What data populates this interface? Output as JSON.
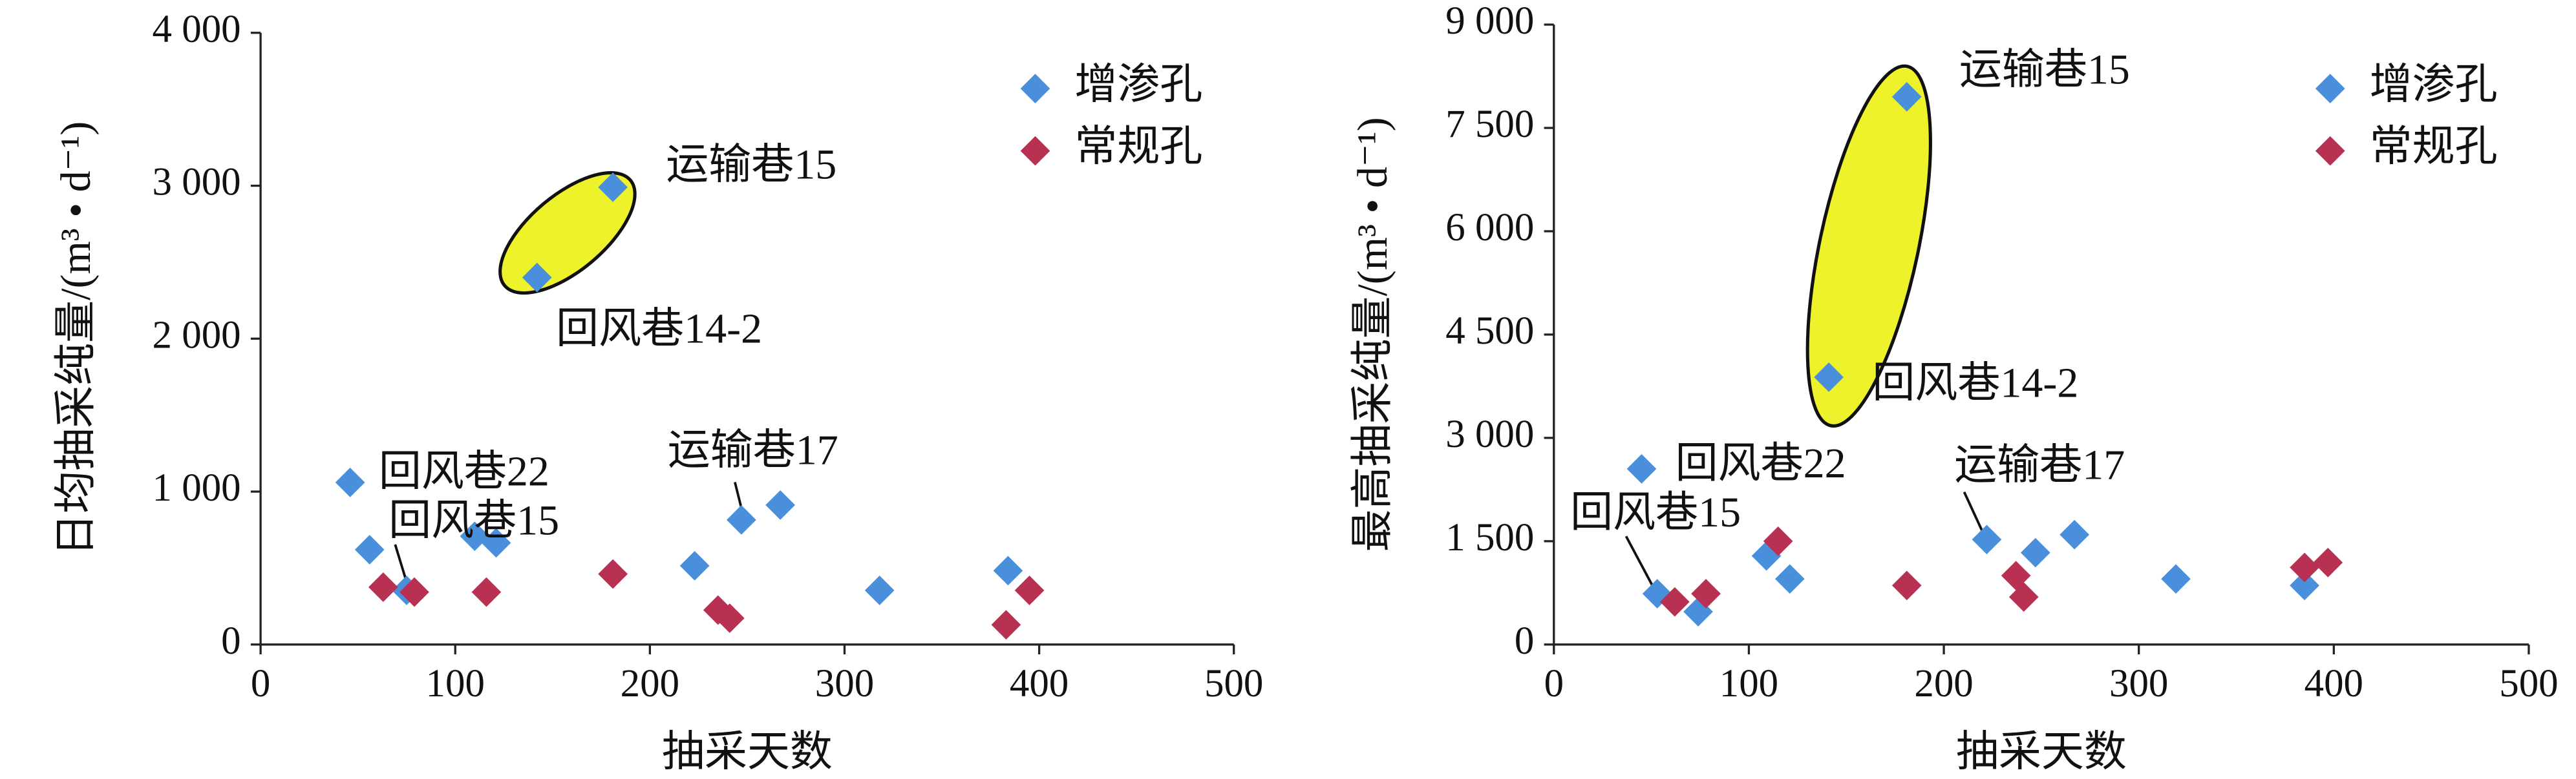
{
  "chart_data": [
    {
      "type": "scatter",
      "x_label": "抽采天数",
      "y_label": "日均抽采纯量/(m³ • d⁻¹)",
      "xlim": [
        0,
        500
      ],
      "xticks": [
        0,
        100,
        200,
        300,
        400,
        500
      ],
      "ylim": [
        0,
        4000
      ],
      "yticks": [
        0,
        {
          "value": 1000,
          "label": "1 000"
        },
        {
          "value": 2000,
          "label": "2 000"
        },
        {
          "value": 3000,
          "label": "3 000"
        },
        {
          "value": 4000,
          "label": "4 000"
        }
      ],
      "legend": "upper right",
      "series": [
        {
          "name": "增渗孔",
          "color": "#4a8fdc",
          "x": [
            46,
            56,
            75,
            110,
            121,
            142,
            181,
            223,
            247,
            267,
            318,
            384
          ],
          "values": [
            1060,
            620,
            354,
            708,
            665,
            2400,
            2990,
            515,
            815,
            912,
            354,
            483
          ]
        },
        {
          "name": "常规孔",
          "color": "#b83052",
          "x": [
            63,
            79,
            116,
            181,
            235,
            241,
            383,
            395
          ],
          "values": [
            375,
            343,
            343,
            461,
            225,
            172,
            129,
            354
          ]
        }
      ],
      "annotations": [
        "运输巷15",
        "回风巷14-2",
        "运输巷17",
        "回风巷22",
        "回风巷15"
      ]
    },
    {
      "type": "scatter",
      "x_label": "抽采天数",
      "y_label": "最高抽采纯量/(m³ • d⁻¹)",
      "xlim": [
        0,
        500
      ],
      "xticks": [
        0,
        100,
        200,
        300,
        400,
        500
      ],
      "ylim": [
        0,
        9000
      ],
      "yticks": [
        0,
        {
          "value": 1500,
          "label": "1 500"
        },
        {
          "value": 3000,
          "label": "3 000"
        },
        {
          "value": 4500,
          "label": "4 500"
        },
        {
          "value": 6000,
          "label": "6 000"
        },
        {
          "value": 7500,
          "label": "7 500"
        },
        {
          "value": 9000,
          "label": "9 000"
        }
      ],
      "legend": "upper right",
      "series": [
        {
          "name": "增渗孔",
          "color": "#4a8fdc",
          "x": [
            45,
            53,
            74,
            109,
            121,
            141,
            181,
            222,
            247,
            267,
            319,
            385
          ],
          "values": [
            2550,
            738,
            476,
            1286,
            952,
            3881,
            7952,
            1524,
            1333,
            1595,
            952,
            857
          ]
        },
        {
          "name": "常规孔",
          "color": "#b83052",
          "x": [
            62,
            78,
            115,
            181,
            237,
            241,
            385,
            397
          ],
          "values": [
            619,
            738,
            1500,
            857,
            1000,
            690,
            1119,
            1190
          ]
        }
      ],
      "annotations": [
        "运输巷15",
        "回风巷14-2",
        "运输巷17",
        "回风巷22",
        "回风巷15"
      ]
    }
  ]
}
